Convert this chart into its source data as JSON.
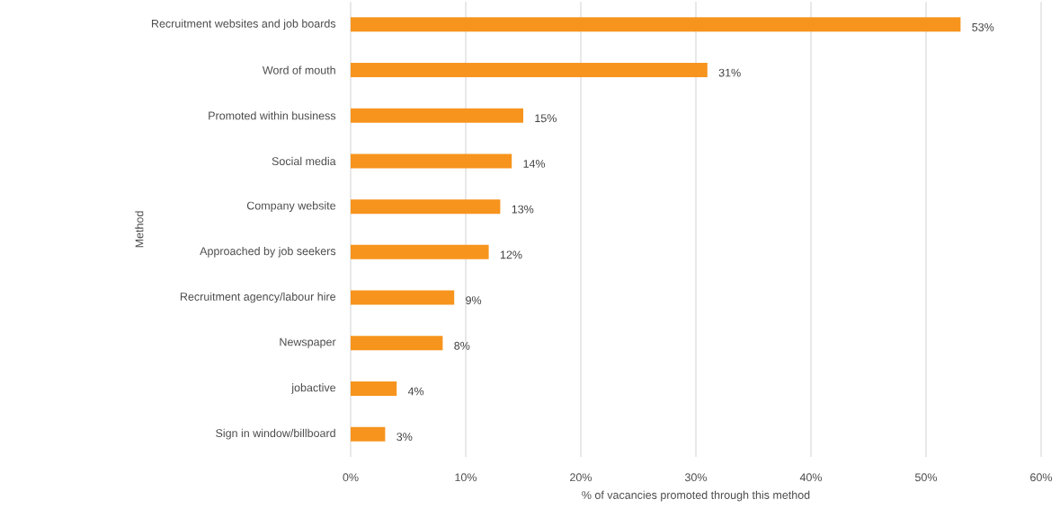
{
  "chart_data": {
    "type": "bar",
    "orientation": "horizontal",
    "xlabel": "% of vacancies promoted through this method",
    "ylabel": "Method",
    "categories": [
      "Recruitment websites and job boards",
      "Word of mouth",
      "Promoted within business",
      "Social media",
      "Company website",
      "Approached by job seekers",
      "Recruitment agency/labour hire",
      "Newspaper",
      "jobactive",
      "Sign in window/billboard"
    ],
    "values": [
      53,
      31,
      15,
      14,
      13,
      12,
      9,
      8,
      4,
      3
    ],
    "value_labels": [
      "53%",
      "31%",
      "15%",
      "14%",
      "13%",
      "12%",
      "9%",
      "8%",
      "4%",
      "3%"
    ],
    "color": "#f7941d",
    "xlim": [
      0,
      60
    ],
    "xticks": [
      {
        "value": 0,
        "label": "0%"
      },
      {
        "value": 10,
        "label": "10%"
      },
      {
        "value": 20,
        "label": "20%"
      },
      {
        "value": 30,
        "label": "30%"
      },
      {
        "value": 40,
        "label": "40%"
      },
      {
        "value": 50,
        "label": "50%"
      },
      {
        "value": 60,
        "label": "60%"
      }
    ],
    "grid": "x"
  }
}
